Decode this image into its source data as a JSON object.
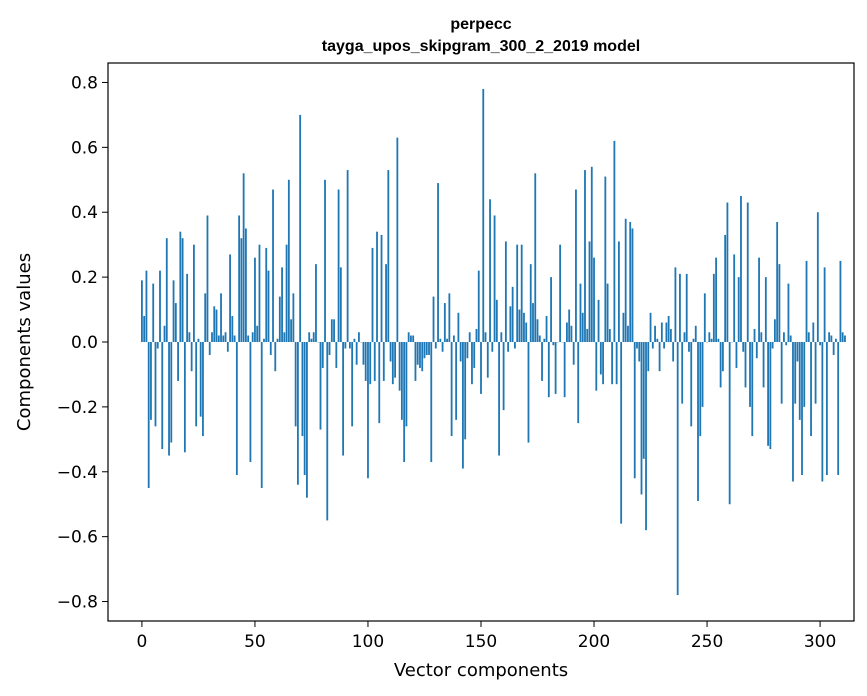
{
  "chart_data": {
    "type": "bar",
    "title": "perpecc",
    "subtitle": "tayga_upos_skipgram_300_2_2019 model",
    "xlabel": "Vector components",
    "ylabel": "Components values",
    "xlim": [
      -15,
      315
    ],
    "ylim": [
      -0.86,
      0.86
    ],
    "xticks": [
      0,
      50,
      100,
      150,
      200,
      250,
      300
    ],
    "xtick_labels": [
      "0",
      "50",
      "100",
      "150",
      "200",
      "250",
      "300"
    ],
    "yticks": [
      -0.8,
      -0.6,
      -0.4,
      -0.2,
      0.0,
      0.2,
      0.4,
      0.6,
      0.8
    ],
    "ytick_labels": [
      "−0.8",
      "−0.6",
      "−0.4",
      "−0.2",
      "0.0",
      "0.2",
      "0.4",
      "0.6",
      "0.8"
    ],
    "bar_color": "#1f77b4",
    "grid": false,
    "values": [
      0.19,
      0.08,
      0.22,
      -0.45,
      -0.24,
      0.18,
      -0.26,
      -0.02,
      0.22,
      -0.33,
      0.05,
      0.32,
      -0.35,
      -0.31,
      0.19,
      0.12,
      -0.12,
      0.34,
      0.32,
      -0.34,
      0.21,
      0.03,
      -0.09,
      0.3,
      -0.26,
      0.01,
      -0.23,
      -0.29,
      0.15,
      0.39,
      -0.04,
      0.03,
      0.11,
      0.1,
      0.02,
      0.15,
      0.02,
      0.03,
      -0.03,
      0.27,
      0.08,
      0.02,
      -0.41,
      0.39,
      0.32,
      0.52,
      0.35,
      0.02,
      -0.37,
      0.03,
      0.26,
      0.05,
      0.3,
      -0.45,
      0.01,
      0.29,
      0.22,
      -0.04,
      0.47,
      -0.09,
      0.01,
      0.14,
      0.23,
      0.03,
      0.3,
      0.5,
      0.07,
      0.15,
      -0.26,
      -0.44,
      0.7,
      -0.29,
      -0.41,
      -0.48,
      0.03,
      0.01,
      0.03,
      0.24,
      0.0,
      -0.27,
      -0.08,
      0.5,
      -0.55,
      -0.04,
      0.07,
      0.07,
      -0.08,
      0.47,
      0.23,
      -0.35,
      -0.02,
      0.53,
      -0.02,
      -0.26,
      0.01,
      -0.07,
      0.03,
      0.0,
      -0.07,
      -0.12,
      -0.42,
      -0.13,
      0.29,
      -0.12,
      0.34,
      -0.25,
      0.33,
      -0.12,
      0.24,
      0.53,
      -0.06,
      -0.13,
      -0.11,
      0.63,
      -0.15,
      -0.24,
      -0.37,
      -0.26,
      0.03,
      0.02,
      0.02,
      -0.12,
      -0.07,
      -0.08,
      -0.09,
      -0.05,
      -0.04,
      -0.04,
      -0.37,
      0.14,
      -0.02,
      0.49,
      0.01,
      -0.03,
      0.12,
      0.01,
      0.15,
      -0.29,
      0.02,
      -0.24,
      0.09,
      -0.06,
      -0.39,
      -0.3,
      -0.05,
      0.03,
      -0.13,
      -0.08,
      0.04,
      0.22,
      -0.16,
      0.78,
      0.03,
      -0.11,
      0.44,
      -0.03,
      0.39,
      0.13,
      -0.35,
      0.03,
      -0.21,
      0.31,
      -0.03,
      0.11,
      0.17,
      -0.02,
      0.3,
      0.1,
      0.3,
      0.09,
      0.06,
      -0.31,
      0.24,
      0.12,
      0.52,
      0.07,
      0.02,
      -0.12,
      0.01,
      0.08,
      -0.17,
      0.2,
      -0.01,
      -0.16,
      0.0,
      0.3,
      0.0,
      -0.17,
      0.06,
      0.1,
      0.05,
      -0.07,
      0.47,
      -0.25,
      0.18,
      0.09,
      0.53,
      0.04,
      0.31,
      0.54,
      0.26,
      -0.15,
      0.13,
      -0.1,
      -0.13,
      0.51,
      0.18,
      0.04,
      -0.13,
      0.62,
      -0.13,
      0.31,
      -0.56,
      0.09,
      0.38,
      0.05,
      0.37,
      0.35,
      -0.42,
      -0.02,
      -0.06,
      -0.47,
      -0.36,
      -0.58,
      -0.09,
      0.09,
      -0.02,
      0.05,
      0.01,
      -0.09,
      0.06,
      -0.02,
      0.06,
      0.08,
      0.04,
      -0.06,
      0.23,
      -0.78,
      0.21,
      -0.19,
      0.03,
      0.21,
      -0.03,
      -0.26,
      0.01,
      0.05,
      -0.49,
      -0.29,
      -0.2,
      0.15,
      0.0,
      0.03,
      0.01,
      0.21,
      0.26,
      0.01,
      -0.14,
      -0.09,
      0.33,
      0.43,
      -0.5,
      0.0,
      0.27,
      -0.08,
      0.2,
      0.45,
      -0.03,
      -0.14,
      0.43,
      -0.2,
      -0.29,
      0.04,
      -0.05,
      0.26,
      0.03,
      -0.14,
      0.2,
      -0.32,
      -0.33,
      -0.02,
      0.07,
      0.37,
      0.24,
      -0.19,
      0.03,
      -0.01,
      0.18,
      0.02,
      -0.43,
      -0.19,
      -0.06,
      -0.24,
      -0.41,
      -0.2,
      0.25,
      0.03,
      -0.29,
      0.06,
      -0.19,
      0.4,
      -0.01,
      -0.43,
      0.23,
      -0.41,
      0.03,
      0.02,
      -0.04,
      0.01,
      -0.41,
      0.25,
      0.03,
      0.02
    ]
  }
}
